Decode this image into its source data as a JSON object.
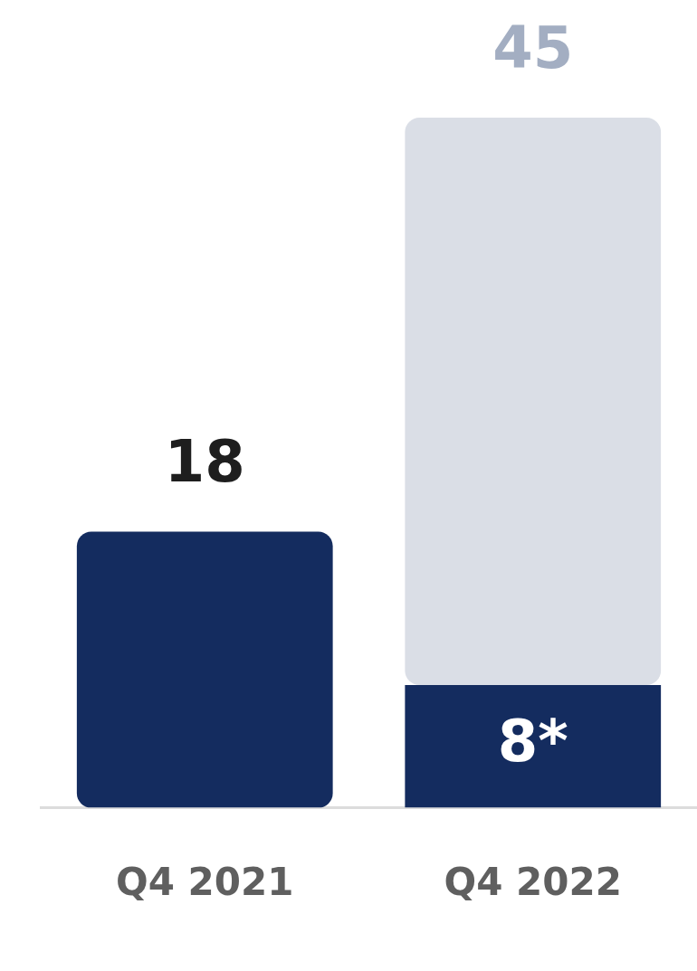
{
  "chart_data": {
    "type": "bar",
    "stacked": true,
    "categories": [
      "Q4 2021",
      "Q4 2022"
    ],
    "series": [
      {
        "color": "#142c5f",
        "values": [
          18,
          8
        ],
        "value_labels": [
          "18",
          "8*"
        ]
      },
      {
        "color": "#dadee6",
        "values": [
          null,
          37
        ]
      }
    ],
    "totals": [
      null,
      "45"
    ],
    "grid": false,
    "legend": false
  }
}
